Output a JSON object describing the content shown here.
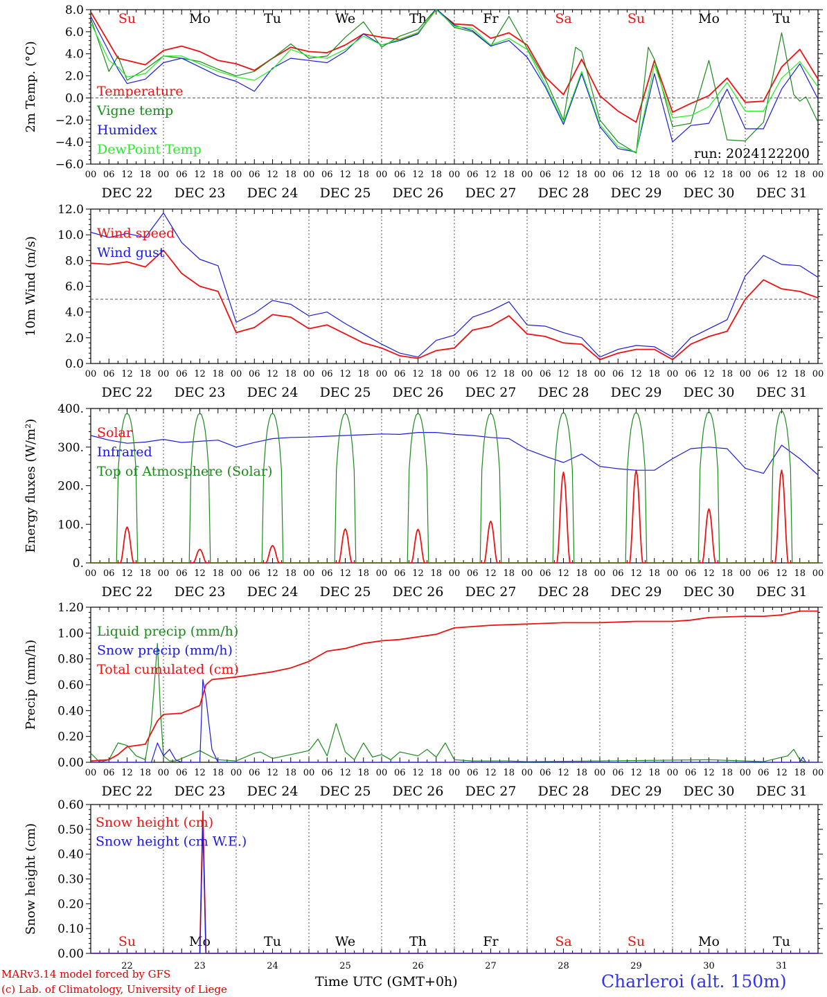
{
  "colors": {
    "red": "#ee1111",
    "green": "#1a8a1a",
    "blue": "#1a1ae0",
    "lightgreen": "#22ee22",
    "grid": "#555555",
    "axis": "#000000",
    "title_blue": "#3333ee"
  },
  "day_labels": [
    {
      "text": "Su",
      "color": "red"
    },
    {
      "text": "Mo",
      "color": "axis"
    },
    {
      "text": "Tu",
      "color": "axis"
    },
    {
      "text": "We",
      "color": "axis"
    },
    {
      "text": "Th",
      "color": "axis"
    },
    {
      "text": "Fr",
      "color": "axis"
    },
    {
      "text": "Sa",
      "color": "red"
    },
    {
      "text": "Su",
      "color": "red"
    },
    {
      "text": "Mo",
      "color": "axis"
    },
    {
      "text": "Tu",
      "color": "axis"
    }
  ],
  "date_labels": [
    "DEC 22",
    "DEC 23",
    "DEC 24",
    "DEC 25",
    "DEC 26",
    "DEC 27",
    "DEC 28",
    "DEC 29",
    "DEC 30",
    "DEC 31"
  ],
  "hour_ticks": [
    "00",
    "06",
    "12",
    "18"
  ],
  "final_hour_tick": "00",
  "bottom_day_numbers": [
    "22",
    "23",
    "24",
    "25",
    "26",
    "27",
    "28",
    "29",
    "30",
    "31"
  ],
  "footer": {
    "credit_line1": "MARv3.14 model forced by GFS",
    "credit_line2": "(c) Lab. of Climatology, University of Liege",
    "xlabel": "Time UTC (GMT+0h)",
    "station": "Charleroi (alt. 150m)"
  },
  "chart_data": [
    {
      "type": "line",
      "ylabel": "2m Temp. (°C)",
      "ylim": [
        -6,
        8
      ],
      "yticks": [
        "8.0",
        "6.0",
        "4.0",
        "2.0",
        "0.0",
        "−2.0",
        "−4.0",
        "−6.0"
      ],
      "reference_line": 0,
      "annotation": "run: 2024122200",
      "x_unit": "hours since DEC 22 00 UTC",
      "series": [
        {
          "name": "Temperature",
          "color": "red",
          "x": [
            0,
            6,
            9,
            12,
            18,
            24,
            30,
            36,
            42,
            48,
            54,
            60,
            66,
            72,
            78,
            84,
            90,
            96,
            102,
            108,
            114,
            120,
            126,
            132,
            138,
            144,
            150,
            156,
            162,
            168,
            174,
            180,
            186,
            192,
            198,
            204,
            210,
            216,
            222,
            228,
            234,
            240
          ],
          "y": [
            7.8,
            5.0,
            3.6,
            3.4,
            3.0,
            4.3,
            4.7,
            4.2,
            3.4,
            3.1,
            2.5,
            3.6,
            4.6,
            4.2,
            4.1,
            4.8,
            5.8,
            5.5,
            5.3,
            5.9,
            8.0,
            6.7,
            6.6,
            5.4,
            5.9,
            4.8,
            1.9,
            0.3,
            3.5,
            0.2,
            -1.2,
            -2.2,
            3.4,
            -1.3,
            -0.5,
            0.2,
            1.8,
            -0.4,
            -0.3,
            2.8,
            4.4,
            1.7
          ]
        },
        {
          "name": "Vigne temp",
          "color": "green",
          "x": [
            0,
            6,
            9,
            12,
            18,
            24,
            30,
            36,
            42,
            48,
            54,
            60,
            66,
            72,
            78,
            84,
            90,
            96,
            102,
            108,
            114,
            120,
            126,
            132,
            138,
            144,
            150,
            156,
            160,
            162,
            168,
            174,
            180,
            184,
            186,
            192,
            198,
            204,
            210,
            216,
            222,
            228,
            232,
            234,
            236,
            240
          ],
          "y": [
            7.2,
            2.4,
            3.8,
            1.6,
            2.6,
            3.8,
            3.6,
            3.3,
            2.6,
            2.0,
            2.4,
            3.6,
            4.9,
            3.6,
            3.8,
            5.5,
            6.9,
            4.6,
            5.6,
            6.2,
            8.1,
            6.4,
            6.0,
            4.7,
            7.4,
            4.5,
            1.7,
            -2.0,
            4.6,
            4.2,
            -2.0,
            -4.0,
            -5.0,
            4.6,
            3.5,
            -2.6,
            -2.3,
            3.4,
            -3.8,
            -3.9,
            -2.2,
            5.9,
            0.3,
            -0.3,
            0.1,
            -2.2
          ]
        },
        {
          "name": "Humidex",
          "color": "blue",
          "x": [
            0,
            6,
            9,
            12,
            18,
            24,
            30,
            36,
            42,
            48,
            54,
            60,
            66,
            72,
            78,
            84,
            90,
            96,
            102,
            108,
            114,
            120,
            126,
            132,
            138,
            144,
            150,
            156,
            162,
            168,
            174,
            180,
            186,
            192,
            198,
            204,
            210,
            216,
            222,
            228,
            234,
            240
          ],
          "y": [
            7.4,
            4.2,
            2.6,
            1.3,
            1.7,
            3.2,
            3.6,
            2.8,
            2.0,
            1.5,
            0.6,
            2.7,
            3.6,
            3.4,
            3.2,
            4.2,
            5.8,
            4.8,
            5.2,
            5.8,
            8.1,
            6.6,
            6.1,
            4.7,
            5.2,
            3.7,
            1.0,
            -2.4,
            2.2,
            -2.6,
            -4.6,
            -4.9,
            2.2,
            -4.0,
            -2.5,
            -2.3,
            0.8,
            -2.8,
            -2.8,
            0.8,
            3.1,
            -0.1
          ]
        },
        {
          "name": "DewPoint Temp",
          "color": "lightgreen",
          "x": [
            0,
            6,
            9,
            12,
            18,
            24,
            30,
            36,
            42,
            48,
            54,
            60,
            66,
            72,
            78,
            84,
            90,
            96,
            102,
            108,
            114,
            120,
            126,
            132,
            138,
            144,
            150,
            156,
            162,
            168,
            174,
            180,
            186,
            192,
            198,
            204,
            210,
            216,
            222,
            228,
            234,
            240
          ],
          "y": [
            6.8,
            3.4,
            2.8,
            1.9,
            2.2,
            3.8,
            3.8,
            3.1,
            2.4,
            1.9,
            1.6,
            2.6,
            4.4,
            3.8,
            3.6,
            4.4,
            5.6,
            4.8,
            5.3,
            5.9,
            8.0,
            6.5,
            6.3,
            4.8,
            5.4,
            4.4,
            1.2,
            -2.2,
            2.4,
            -2.4,
            -4.4,
            -4.9,
            3.0,
            -1.8,
            -1.6,
            -0.8,
            1.4,
            -1.2,
            -1.2,
            1.8,
            3.3,
            1.0
          ]
        }
      ]
    },
    {
      "type": "line",
      "ylabel": "10m Wind (m/s)",
      "ylim": [
        0,
        12
      ],
      "yticks": [
        "12.0",
        "10.0",
        "8.0",
        "6.0",
        "4.0",
        "2.0",
        "0.0"
      ],
      "reference_line": 5,
      "x_unit": "hours since DEC 22 00 UTC",
      "series": [
        {
          "name": "Wind speed",
          "color": "red",
          "x": [
            0,
            6,
            12,
            18,
            24,
            30,
            36,
            42,
            48,
            54,
            60,
            66,
            72,
            78,
            84,
            90,
            96,
            102,
            108,
            114,
            120,
            126,
            132,
            138,
            144,
            150,
            156,
            162,
            168,
            174,
            180,
            186,
            192,
            198,
            204,
            210,
            216,
            222,
            228,
            234,
            240
          ],
          "y": [
            7.8,
            7.7,
            7.9,
            7.5,
            8.8,
            7.0,
            6.0,
            5.6,
            2.4,
            2.8,
            3.8,
            3.6,
            2.7,
            3.0,
            2.3,
            1.6,
            1.2,
            0.6,
            0.4,
            1.0,
            1.2,
            2.6,
            2.9,
            3.7,
            2.3,
            2.1,
            1.6,
            1.5,
            0.3,
            0.8,
            1.1,
            1.1,
            0.3,
            1.5,
            2.1,
            2.5,
            5.0,
            6.5,
            5.8,
            5.6,
            5.1
          ]
        },
        {
          "name": "Wind gust",
          "color": "blue",
          "x": [
            0,
            6,
            12,
            18,
            24,
            30,
            36,
            42,
            48,
            54,
            60,
            66,
            72,
            78,
            84,
            90,
            96,
            102,
            108,
            114,
            120,
            126,
            132,
            138,
            144,
            150,
            156,
            162,
            168,
            174,
            180,
            186,
            192,
            198,
            204,
            210,
            216,
            222,
            228,
            234,
            240
          ],
          "y": [
            10.2,
            9.8,
            10.1,
            9.8,
            11.7,
            9.4,
            8.1,
            7.6,
            3.2,
            3.9,
            4.9,
            4.6,
            3.7,
            4.0,
            3.1,
            2.3,
            1.5,
            0.8,
            0.5,
            1.8,
            2.2,
            3.6,
            4.1,
            4.8,
            3.0,
            2.9,
            2.4,
            2.0,
            0.5,
            1.1,
            1.4,
            1.3,
            0.5,
            2.0,
            2.7,
            3.4,
            6.8,
            8.4,
            7.7,
            7.6,
            6.7
          ]
        }
      ]
    },
    {
      "type": "line",
      "ylabel": "Energy fluxes (W/m²)",
      "ylim": [
        0,
        400
      ],
      "yticks": [
        "400.",
        "300.",
        "200.",
        "100.",
        "0."
      ],
      "x_unit": "hours since DEC 22 00 UTC",
      "daily_peaks": {
        "Solar": [
          93,
          35,
          45,
          88,
          87,
          108,
          235,
          240,
          140,
          240
        ],
        "Top of Atmosphere (Solar)": [
          388,
          388,
          388,
          388,
          388,
          388,
          390,
          390,
          392,
          394
        ]
      },
      "series": [
        {
          "name": "Solar",
          "color": "red"
        },
        {
          "name": "Infrared",
          "color": "blue",
          "x": [
            0,
            6,
            12,
            18,
            24,
            30,
            36,
            42,
            48,
            54,
            60,
            66,
            72,
            78,
            84,
            90,
            96,
            102,
            108,
            114,
            120,
            126,
            132,
            138,
            144,
            150,
            156,
            162,
            168,
            174,
            180,
            186,
            192,
            198,
            204,
            210,
            216,
            222,
            228,
            234,
            240
          ],
          "y": [
            330,
            318,
            310,
            313,
            320,
            312,
            315,
            318,
            300,
            312,
            322,
            325,
            326,
            328,
            330,
            332,
            334,
            333,
            338,
            338,
            333,
            330,
            325,
            322,
            294,
            276,
            260,
            282,
            250,
            244,
            240,
            240,
            270,
            296,
            300,
            296,
            245,
            232,
            305,
            270,
            228
          ]
        },
        {
          "name": "Top of Atmosphere (Solar)",
          "color": "green"
        }
      ]
    },
    {
      "type": "line",
      "ylabel": "Precip (mm/h)",
      "ylim": [
        0,
        1.2
      ],
      "yticks": [
        "1.20",
        "1.00",
        "0.80",
        "0.60",
        "0.40",
        "0.20",
        "0.00"
      ],
      "x_unit": "hours since DEC 22 00 UTC",
      "series": [
        {
          "name": "Liquid precip (mm/h)",
          "color": "green",
          "x": [
            0,
            3,
            6,
            9,
            12,
            15,
            18,
            20,
            22,
            23,
            24,
            26,
            28,
            30,
            36,
            40,
            42,
            48,
            54,
            56,
            60,
            66,
            72,
            75,
            78,
            81,
            84,
            87,
            90,
            93,
            96,
            99,
            102,
            108,
            111,
            114,
            117,
            120,
            126,
            132,
            138,
            144,
            168,
            204,
            216,
            222,
            230,
            232,
            234,
            236,
            240
          ],
          "y": [
            0.07,
            0,
            0.02,
            0.15,
            0.13,
            0.05,
            0.02,
            0.3,
            0.92,
            0.4,
            0.05,
            0.01,
            0.01,
            0.03,
            0.09,
            0.04,
            0.02,
            0.01,
            0.07,
            0.08,
            0.03,
            0.06,
            0.09,
            0.18,
            0.05,
            0.3,
            0.08,
            0.02,
            0.15,
            0.04,
            0.06,
            0.02,
            0.08,
            0.05,
            0.1,
            0.04,
            0.15,
            0.02,
            0.01,
            0.01,
            0.01,
            0.005,
            0.01,
            0.02,
            0.01,
            0.005,
            0.05,
            0.1,
            0.02,
            0,
            0
          ]
        },
        {
          "name": "Snow precip (mm/h)",
          "color": "blue",
          "x": [
            0,
            16,
            20,
            22,
            24,
            26,
            28,
            30,
            34,
            36,
            37,
            38,
            40,
            42,
            48,
            60,
            234,
            235,
            236,
            240
          ],
          "y": [
            0,
            0,
            0,
            0.15,
            0.05,
            0.1,
            0.02,
            0,
            0,
            0,
            0.64,
            0.5,
            0.1,
            0,
            0,
            0,
            0,
            0.04,
            0,
            0
          ]
        },
        {
          "name": "Total cumulated (cm)",
          "color": "red",
          "x": [
            0,
            6,
            9,
            12,
            18,
            22,
            24,
            30,
            36,
            38,
            40,
            48,
            54,
            60,
            66,
            72,
            78,
            84,
            90,
            96,
            102,
            108,
            114,
            120,
            126,
            132,
            144,
            156,
            168,
            180,
            192,
            198,
            204,
            216,
            222,
            228,
            232,
            234,
            240
          ],
          "y": [
            0.01,
            0.02,
            0.06,
            0.12,
            0.14,
            0.32,
            0.37,
            0.38,
            0.44,
            0.6,
            0.64,
            0.66,
            0.68,
            0.7,
            0.73,
            0.78,
            0.86,
            0.88,
            0.92,
            0.94,
            0.95,
            0.97,
            0.99,
            1.04,
            1.05,
            1.06,
            1.07,
            1.08,
            1.08,
            1.09,
            1.09,
            1.1,
            1.12,
            1.13,
            1.13,
            1.14,
            1.16,
            1.17,
            1.17
          ]
        }
      ]
    },
    {
      "type": "line",
      "ylabel": "Snow height (cm)",
      "ylim": [
        0,
        0.65
      ],
      "yticks": [
        "0.60",
        "0.50",
        "0.40",
        "0.30",
        "0.20",
        "0.10",
        "0.00"
      ],
      "x_unit": "hours since DEC 22 00 UTC",
      "series": [
        {
          "name": "Snow height (cm)",
          "color": "red",
          "x": [
            0,
            36,
            37,
            38,
            240
          ],
          "y": [
            0,
            0,
            0.62,
            0,
            0
          ]
        },
        {
          "name": "Snow height (cm W.E.)",
          "color": "blue",
          "x": [
            0,
            36,
            37,
            38,
            240
          ],
          "y": [
            0,
            0,
            0.55,
            0,
            0
          ]
        }
      ]
    }
  ]
}
